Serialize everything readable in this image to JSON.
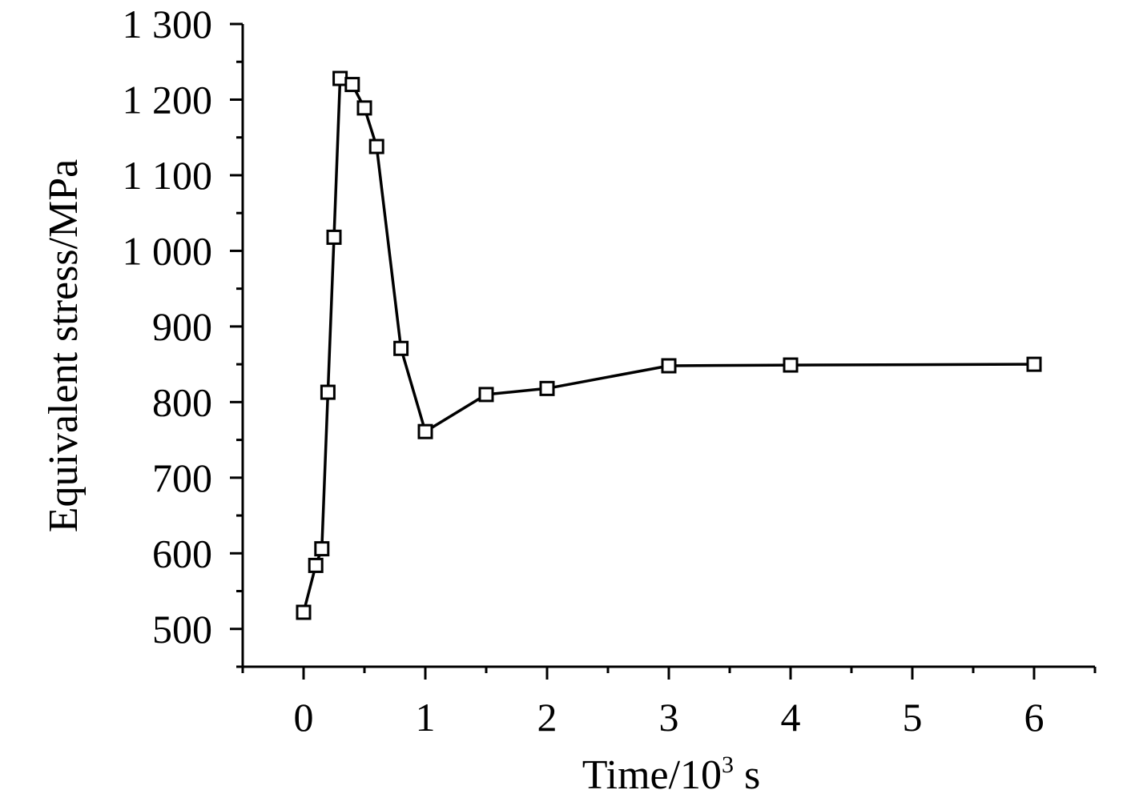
{
  "chart_data": {
    "type": "line",
    "title": "",
    "xlabel": "Time/10",
    "xlabel_sup": "3",
    "xlabel_unit": " s",
    "ylabel": "Equivalent stress/MPa",
    "xlim": [
      -0.5,
      6.5
    ],
    "ylim": [
      450,
      1300
    ],
    "x_ticks": [
      0,
      1,
      2,
      3,
      4,
      5,
      6
    ],
    "x_tick_labels": [
      "0",
      "1",
      "2",
      "3",
      "4",
      "5",
      "6"
    ],
    "y_ticks": [
      500,
      600,
      700,
      800,
      900,
      1000,
      1100,
      1200,
      1300
    ],
    "y_tick_labels": [
      "500",
      "600",
      "700",
      "800",
      "900",
      "1 000",
      "1 100",
      "1 200",
      "1 300"
    ],
    "grid": false,
    "legend": "none",
    "marker": "open-square",
    "color": "#000000",
    "series": [
      {
        "x": [
          0,
          0.1,
          0.15,
          0.2,
          0.25,
          0.3,
          0.4,
          0.5,
          0.6,
          0.8,
          1.0,
          1.5,
          2.0,
          3.0,
          4.0,
          6.0
        ],
        "y": [
          522,
          584,
          606,
          813,
          1018,
          1228,
          1220,
          1189,
          1138,
          871,
          761,
          810,
          818,
          848,
          849,
          850
        ]
      }
    ]
  }
}
